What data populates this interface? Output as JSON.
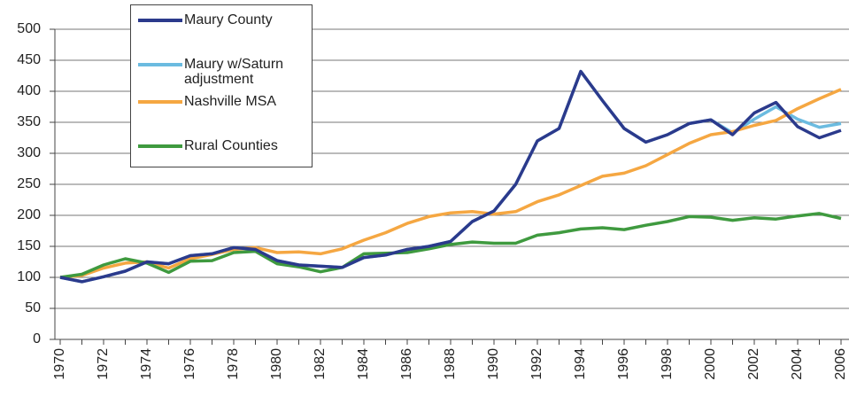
{
  "chart_data": {
    "type": "line",
    "categories": [
      "1970",
      null,
      "1972",
      null,
      "1974",
      null,
      "1976",
      null,
      "1978",
      null,
      "1980",
      null,
      "1982",
      null,
      "1984",
      null,
      "1986",
      null,
      "1988",
      null,
      "1990",
      null,
      "1992",
      null,
      "1994",
      null,
      "1996",
      null,
      "1998",
      null,
      "2000",
      null,
      "2002",
      null,
      "2004",
      null,
      "2006"
    ],
    "series": [
      {
        "name": "Maury County",
        "color": "#2b3a8c",
        "values": [
          100,
          93,
          101,
          110,
          125,
          122,
          135,
          138,
          148,
          145,
          127,
          120,
          118,
          116,
          132,
          136,
          145,
          150,
          158,
          190,
          207,
          250,
          320,
          340,
          432,
          385,
          340,
          318,
          330,
          348,
          354,
          330,
          365,
          382,
          343,
          325,
          337
        ]
      },
      {
        "name": "Maury w/Saturn adjustment",
        "color": "#6bbbe0",
        "values": [
          100,
          93,
          101,
          110,
          125,
          122,
          135,
          138,
          148,
          145,
          127,
          120,
          118,
          116,
          132,
          136,
          145,
          150,
          158,
          190,
          207,
          250,
          320,
          340,
          432,
          385,
          340,
          318,
          330,
          348,
          354,
          333,
          355,
          375,
          355,
          342,
          348
        ]
      },
      {
        "name": "Nashville MSA",
        "color": "#f5a742",
        "values": [
          100,
          103,
          115,
          123,
          125,
          115,
          130,
          137,
          145,
          148,
          140,
          141,
          138,
          146,
          160,
          172,
          187,
          198,
          204,
          206,
          202,
          206,
          222,
          233,
          248,
          263,
          268,
          280,
          298,
          316,
          330,
          335,
          345,
          353,
          372,
          388,
          403
        ]
      },
      {
        "name": "Rural Counties",
        "color": "#3f9a3f",
        "values": [
          100,
          105,
          120,
          130,
          123,
          108,
          126,
          127,
          140,
          142,
          122,
          117,
          109,
          116,
          138,
          139,
          140,
          146,
          153,
          157,
          155,
          155,
          168,
          172,
          178,
          180,
          177,
          184,
          190,
          198,
          197,
          192,
          196,
          194,
          199,
          203,
          195
        ]
      }
    ],
    "ylim": [
      0,
      500
    ],
    "yticks": [
      0,
      50,
      100,
      150,
      200,
      250,
      300,
      350,
      400,
      450,
      500
    ],
    "grid": true
  }
}
